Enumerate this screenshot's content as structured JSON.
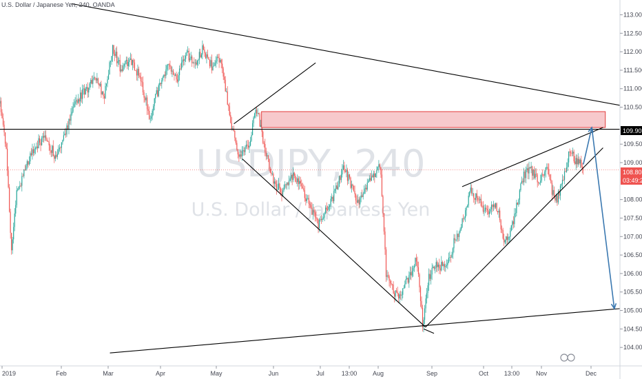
{
  "header": {
    "symbol_title": "U.S. Dollar / Japanese Yen, 240, OANDA"
  },
  "watermark": {
    "symbol": "USDJPY, 240",
    "description": "U.S. Dollar / Japanese Yen"
  },
  "price_labels": {
    "line_level": "109.903",
    "last_price": "108.805",
    "countdown": "03:49:28"
  },
  "colors": {
    "background": "#ffffff",
    "up_candle": "#26a69a",
    "down_candle": "#ef5350",
    "trendline": "#000000",
    "zone_fill": "#f7c9cc",
    "zone_border": "#e23c3c",
    "projection_arrow": "#3a78b0",
    "last_price_line": "#ef5350",
    "watermark": "#dfe2e7"
  },
  "chart_data": {
    "type": "candlestick",
    "title": "U.S. Dollar / Japanese Yen, 240, OANDA",
    "x_tick_labels": [
      "2019",
      "Feb",
      "Mar",
      "Apr",
      "May",
      "Jun",
      "Jul",
      "13:00",
      "Aug",
      "Sep",
      "Oct",
      "13:00",
      "Nov",
      "Dec"
    ],
    "y_tick_labels": [
      "113.000",
      "112.500",
      "112.000",
      "111.500",
      "111.000",
      "110.500",
      "109.500",
      "109.000",
      "108.000",
      "107.500",
      "107.000",
      "106.500",
      "106.000",
      "105.500",
      "105.000",
      "104.500",
      "104.000"
    ],
    "y_range": [
      103.8,
      113.2
    ],
    "x_range": [
      0,
      11
    ],
    "price_path": [
      [
        0.0,
        110.6
      ],
      [
        0.12,
        109.2
      ],
      [
        0.2,
        106.5
      ],
      [
        0.3,
        108.2
      ],
      [
        0.45,
        108.8
      ],
      [
        0.6,
        109.4
      ],
      [
        0.8,
        109.7
      ],
      [
        1.0,
        109.1
      ],
      [
        1.15,
        109.7
      ],
      [
        1.3,
        110.6
      ],
      [
        1.5,
        110.9
      ],
      [
        1.7,
        111.3
      ],
      [
        1.85,
        110.8
      ],
      [
        2.0,
        112.1
      ],
      [
        2.15,
        111.5
      ],
      [
        2.3,
        111.8
      ],
      [
        2.5,
        111.3
      ],
      [
        2.65,
        110.2
      ],
      [
        2.85,
        111.2
      ],
      [
        3.0,
        111.7
      ],
      [
        3.15,
        111.3
      ],
      [
        3.3,
        112.0
      ],
      [
        3.45,
        111.7
      ],
      [
        3.6,
        112.1
      ],
      [
        3.75,
        111.6
      ],
      [
        3.88,
        111.9
      ],
      [
        4.0,
        111.0
      ],
      [
        4.1,
        110.0
      ],
      [
        4.25,
        109.2
      ],
      [
        4.4,
        109.4
      ],
      [
        4.55,
        110.5
      ],
      [
        4.7,
        109.4
      ],
      [
        4.85,
        108.5
      ],
      [
        5.0,
        108.2
      ],
      [
        5.2,
        108.6
      ],
      [
        5.35,
        108.3
      ],
      [
        5.5,
        107.8
      ],
      [
        5.65,
        107.3
      ],
      [
        5.8,
        107.8
      ],
      [
        5.95,
        108.2
      ],
      [
        6.1,
        108.9
      ],
      [
        6.2,
        108.5
      ],
      [
        6.35,
        107.9
      ],
      [
        6.5,
        108.3
      ],
      [
        6.65,
        108.7
      ],
      [
        6.75,
        108.9
      ],
      [
        6.85,
        106.0
      ],
      [
        6.95,
        105.6
      ],
      [
        7.1,
        105.3
      ],
      [
        7.25,
        105.9
      ],
      [
        7.4,
        106.4
      ],
      [
        7.5,
        104.6
      ],
      [
        7.6,
        105.9
      ],
      [
        7.75,
        106.3
      ],
      [
        7.9,
        106.1
      ],
      [
        8.05,
        106.8
      ],
      [
        8.2,
        107.4
      ],
      [
        8.35,
        108.2
      ],
      [
        8.5,
        108.0
      ],
      [
        8.65,
        107.6
      ],
      [
        8.8,
        107.9
      ],
      [
        8.95,
        106.9
      ],
      [
        9.1,
        107.3
      ],
      [
        9.25,
        108.5
      ],
      [
        9.4,
        108.9
      ],
      [
        9.55,
        108.5
      ],
      [
        9.7,
        108.9
      ],
      [
        9.85,
        107.9
      ],
      [
        9.95,
        108.3
      ],
      [
        10.1,
        109.3
      ],
      [
        10.2,
        109.1
      ],
      [
        10.35,
        108.9
      ]
    ],
    "annotations": {
      "horizontal_line": 109.903,
      "last_price": 108.805,
      "resistance_zone": {
        "x_from": 4.64,
        "x_to": 10.74,
        "y_from": 109.95,
        "y_to": 110.38
      },
      "trendlines": [
        {
          "from": [
            1.27,
            113.3
          ],
          "to": [
            11.0,
            110.55
          ]
        },
        {
          "from": [
            1.95,
            103.85
          ],
          "to": [
            11.0,
            105.05
          ]
        },
        {
          "from": [
            4.3,
            109.1
          ],
          "to": [
            7.55,
            104.55
          ]
        },
        {
          "from": [
            4.15,
            110.05
          ],
          "to": [
            5.6,
            111.7
          ]
        },
        {
          "from": [
            7.55,
            104.55
          ],
          "to": [
            10.7,
            109.4
          ]
        },
        {
          "from": [
            8.2,
            108.35
          ],
          "to": [
            10.7,
            109.95
          ]
        },
        {
          "from": [
            7.52,
            104.5
          ],
          "to": [
            7.7,
            104.38
          ]
        }
      ],
      "projection_path": [
        [
          10.35,
          108.95
        ],
        [
          10.5,
          109.95
        ],
        [
          10.9,
          105.05
        ]
      ],
      "projection_arrowheads": [
        [
          10.5,
          109.95
        ],
        [
          10.9,
          105.05
        ]
      ]
    }
  }
}
